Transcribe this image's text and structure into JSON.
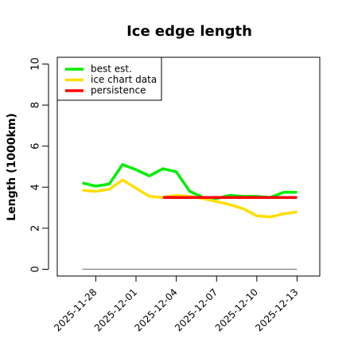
{
  "chart_data": {
    "type": "line",
    "title": "Ice edge length",
    "xlabel": "",
    "ylabel": "Length (1000km)",
    "ylim": [
      0,
      10
    ],
    "yticks": [
      0,
      2,
      4,
      6,
      8,
      10
    ],
    "xlim": [
      "2025-11-26",
      "2025-12-15"
    ],
    "xticks": [
      "2025-11-28",
      "2025-12-01",
      "2025-12-04",
      "2025-12-07",
      "2025-12-10",
      "2025-12-13"
    ],
    "grid": false,
    "legend_position": "top-left",
    "series": [
      {
        "name": "best est.",
        "color": "#00ee00",
        "x": [
          "2025-11-27",
          "2025-11-28",
          "2025-11-29",
          "2025-11-30",
          "2025-12-01",
          "2025-12-02",
          "2025-12-03",
          "2025-12-04",
          "2025-12-05",
          "2025-12-06",
          "2025-12-07",
          "2025-12-08",
          "2025-12-09",
          "2025-12-10",
          "2025-12-11",
          "2025-12-12",
          "2025-12-13"
        ],
        "values": [
          4.2,
          4.05,
          4.15,
          5.1,
          4.85,
          4.55,
          4.9,
          4.75,
          3.8,
          3.5,
          3.45,
          3.6,
          3.55,
          3.55,
          3.5,
          3.75,
          3.75
        ]
      },
      {
        "name": "ice chart data",
        "color": "#ffdd00",
        "x": [
          "2025-11-27",
          "2025-11-28",
          "2025-11-29",
          "2025-11-30",
          "2025-12-01",
          "2025-12-02",
          "2025-12-03",
          "2025-12-04",
          "2025-12-05",
          "2025-12-06",
          "2025-12-07",
          "2025-12-08",
          "2025-12-09",
          "2025-12-10",
          "2025-12-11",
          "2025-12-12",
          "2025-12-13"
        ],
        "values": [
          3.85,
          3.8,
          3.9,
          4.35,
          3.95,
          3.55,
          3.5,
          3.6,
          3.55,
          3.45,
          3.3,
          3.15,
          2.95,
          2.6,
          2.55,
          2.7,
          2.8
        ]
      },
      {
        "name": "persistence",
        "color": "#ff0000",
        "x": [
          "2025-12-03",
          "2025-12-13"
        ],
        "values": [
          3.5,
          3.5
        ]
      }
    ],
    "baseline": {
      "color": "#808080",
      "x": [
        "2025-11-27",
        "2025-12-13"
      ],
      "values": [
        0,
        0
      ]
    }
  }
}
